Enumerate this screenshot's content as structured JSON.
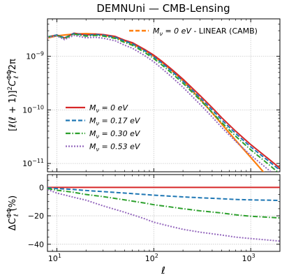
{
  "chart_data": [
    {
      "panel": "top",
      "type": "line",
      "title": "DEMNUni — CMB-Lensing",
      "ylabel": "[ℓ(ℓ + 1)]²C_ℓ^ΦΦ / 2π",
      "ylabel_parts": {
        "main": "[ℓ(ℓ + 1)]",
        "sq": "2",
        "c": "C",
        "sup": "ΦΦ",
        "sub": "ℓ",
        "tail": "/2π"
      },
      "xscale": "log",
      "yscale": "log",
      "xlim": [
        8,
        2000
      ],
      "ylim": [
        7e-12,
        5e-09
      ],
      "x_ticks": [
        {
          "v": 10,
          "b": "10",
          "e": "1"
        },
        {
          "v": 100,
          "b": "10",
          "e": "2"
        },
        {
          "v": 1000,
          "b": "10",
          "e": "3"
        }
      ],
      "y_ticks": [
        {
          "v": 1e-09,
          "b": "10",
          "e": "−9"
        },
        {
          "v": 1e-10,
          "b": "10",
          "e": "−10"
        },
        {
          "v": 1e-11,
          "b": "10",
          "e": "−11"
        }
      ],
      "grid": true,
      "legend_placement": [
        "top-right",
        "center-left"
      ],
      "x": [
        8,
        10,
        12,
        15,
        20,
        25,
        30,
        40,
        50,
        60,
        80,
        100,
        120,
        150,
        200,
        300,
        400,
        500,
        700,
        1000,
        1500,
        2000
      ],
      "linear_reference": {
        "name": "M_ν = 0 eV - LINEAR (CAMB)",
        "label": {
          "m": "M",
          "nu": "ν",
          "rest": " = 0 eV",
          "suffix": " - LINEAR (CAMB)"
        },
        "color": "#ff7f0e",
        "values": [
          2.2e-09,
          2.4e-09,
          2.5e-09,
          2.6e-09,
          2.65e-09,
          2.6e-09,
          2.5e-09,
          2.25e-09,
          1.95e-09,
          1.7e-09,
          1.3e-09,
          1e-09,
          7.8e-10,
          5.6e-10,
          3.5e-10,
          1.6e-10,
          8.8e-11,
          5.5e-11,
          2.7e-11,
          1.3e-11,
          5.6e-12,
          2.9e-12
        ]
      },
      "series": [
        {
          "name": "M_ν = 0 eV",
          "label": {
            "m": "M",
            "nu": "ν",
            "rest": " = 0 eV"
          },
          "color": "#d62728",
          "style": "solid",
          "values": [
            2.3e-09,
            2.5e-09,
            2.2e-09,
            2.7e-09,
            2.5e-09,
            2.6e-09,
            2.55e-09,
            2.35e-09,
            2e-09,
            1.8e-09,
            1.35e-09,
            1.05e-09,
            8.2e-10,
            5.9e-10,
            3.75e-10,
            1.85e-10,
            1.1e-10,
            7.2e-11,
            4e-11,
            2.25e-11,
            1.25e-11,
            8.2e-12
          ]
        },
        {
          "name": "M_ν = 0.17 eV",
          "label": {
            "m": "M",
            "nu": "ν",
            "rest": " = 0.17 eV"
          },
          "color": "#1f77b4",
          "style": "dashed",
          "values": [
            2.3e-09,
            2.5e-09,
            2.2e-09,
            2.66e-09,
            2.45e-09,
            2.55e-09,
            2.48e-09,
            2.27e-09,
            1.92e-09,
            1.72e-09,
            1.28e-09,
            9.8e-10,
            7.6e-10,
            5.45e-10,
            3.45e-10,
            1.69e-10,
            1e-10,
            6.55e-11,
            3.63e-11,
            2.04e-11,
            1.14e-11,
            7.5e-12
          ]
        },
        {
          "name": "M_ν = 0.30 eV",
          "label": {
            "m": "M",
            "nu": "ν",
            "rest": " = 0.30 eV"
          },
          "color": "#2ca02c",
          "style": "dashdot",
          "values": [
            2.28e-09,
            2.45e-09,
            2.15e-09,
            2.6e-09,
            2.38e-09,
            2.46e-09,
            2.39e-09,
            2.16e-09,
            1.81e-09,
            1.61e-09,
            1.19e-09,
            9.1e-10,
            7e-10,
            5e-10,
            3.15e-10,
            1.53e-10,
            9e-11,
            5.85e-11,
            3.22e-11,
            1.8e-11,
            9.9e-12,
            6.4e-12
          ]
        },
        {
          "name": "M_ν = 0.53 eV",
          "label": {
            "m": "M",
            "nu": "ν",
            "rest": " = 0.53 eV"
          },
          "color": "#9467bd",
          "style": "dotted",
          "values": [
            2.25e-09,
            2.4e-09,
            2.05e-09,
            2.45e-09,
            2.22e-09,
            2.27e-09,
            2.18e-09,
            1.95e-09,
            1.61e-09,
            1.42e-09,
            1.04e-09,
            7.9e-10,
            6e-10,
            4.25e-10,
            2.65e-10,
            1.27e-10,
            7.4e-11,
            4.75e-11,
            2.58e-11,
            1.43e-11,
            7.8e-12,
            5e-12
          ]
        }
      ]
    },
    {
      "panel": "bottom",
      "type": "line",
      "xlabel": "ℓ",
      "ylabel": "ΔC_ℓ^ΦΦ(%)",
      "ylabel_parts": {
        "pre": "ΔC",
        "sup": "ΦΦ",
        "sub": "ℓ",
        "tail": "(%)"
      },
      "xscale": "log",
      "xlim": [
        8,
        2000
      ],
      "ylim": [
        -45,
        9
      ],
      "x_ticks": [
        {
          "v": 10,
          "b": "10",
          "e": "1"
        },
        {
          "v": 100,
          "b": "10",
          "e": "2"
        },
        {
          "v": 1000,
          "b": "10",
          "e": "3"
        }
      ],
      "y_ticks": [
        {
          "v": 0,
          "label": "0"
        },
        {
          "v": -20,
          "label": "−20"
        },
        {
          "v": -40,
          "label": "−40"
        }
      ],
      "grid": true,
      "x": [
        8,
        10,
        15,
        20,
        30,
        50,
        80,
        100,
        150,
        200,
        300,
        500,
        700,
        1000,
        1500,
        2000
      ],
      "series": [
        {
          "name": "M_ν = 0 eV",
          "color": "#d62728",
          "style": "solid",
          "values": [
            0,
            0,
            0,
            0,
            0,
            0,
            0,
            0,
            0,
            0,
            0,
            0,
            0,
            0,
            0,
            0
          ]
        },
        {
          "name": "M_ν = 0.17 eV",
          "color": "#1f77b4",
          "style": "dashed",
          "values": [
            -0.3,
            -0.8,
            -1.5,
            -2.2,
            -3.0,
            -4.0,
            -5.0,
            -5.5,
            -6.2,
            -6.7,
            -7.3,
            -8.0,
            -8.5,
            -8.8,
            -9.0,
            -9.2
          ]
        },
        {
          "name": "M_ν = 0.30 eV",
          "color": "#2ca02c",
          "style": "dashdot",
          "values": [
            -0.8,
            -2.0,
            -3.5,
            -5.0,
            -6.5,
            -8.8,
            -11.0,
            -12.2,
            -13.8,
            -15.0,
            -16.5,
            -18.0,
            -19.3,
            -20.3,
            -21.0,
            -21.5
          ]
        },
        {
          "name": "M_ν = 0.53 eV",
          "color": "#9467bd",
          "style": "dotted",
          "values": [
            -1.5,
            -4.0,
            -7.0,
            -9.0,
            -13.0,
            -17.5,
            -22.0,
            -24.5,
            -27.5,
            -29.5,
            -31.5,
            -33.5,
            -35.0,
            -36.0,
            -37.0,
            -37.8
          ]
        }
      ]
    }
  ]
}
